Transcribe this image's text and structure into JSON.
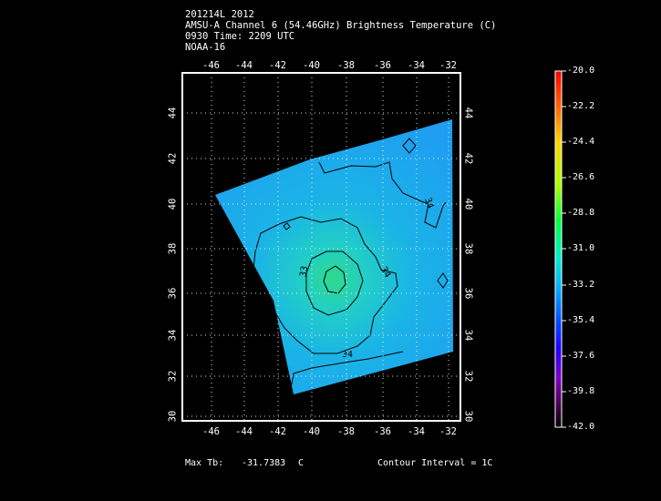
{
  "header": {
    "line1": "201214L 2012",
    "line2": "AMSU-A Channel 6 (54.46GHz) Brightness Temperature (C)",
    "line3": "0930 Time: 2209 UTC",
    "line4": "NOAA-16"
  },
  "map": {
    "lon_ticks": [
      "-46",
      "-44",
      "-42",
      "-40",
      "-38",
      "-36",
      "-34",
      "-32"
    ],
    "lat_ticks": [
      "30",
      "32",
      "34",
      "36",
      "38",
      "40",
      "42",
      "44"
    ],
    "contour_labels": [
      "33",
      "34",
      "34",
      "34"
    ]
  },
  "colorbar": {
    "ticks": [
      "-20.0",
      "-22.2",
      "-24.4",
      "-26.6",
      "-28.8",
      "-31.0",
      "-33.2",
      "-35.4",
      "-37.6",
      "-39.8",
      "-42.0"
    ]
  },
  "footer": {
    "max_label": "Max Tb:",
    "max_value": "-31.7383",
    "max_unit": "C",
    "contour_interval": "Contour Interval = 1C"
  }
}
